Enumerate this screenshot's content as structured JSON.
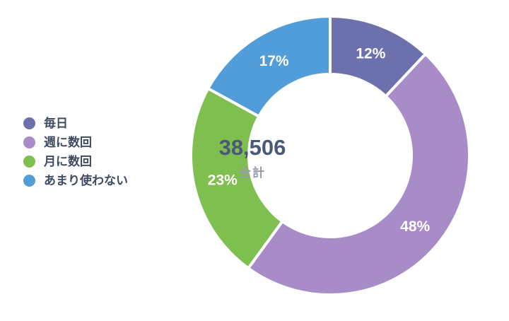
{
  "chart_data": {
    "type": "pie",
    "subtype": "donut",
    "title": "",
    "legend_position": "left",
    "start_angle_deg": 0,
    "direction": "clockwise",
    "center_total_value": "38,506",
    "center_total_label": "合計",
    "series": [
      {
        "label": "毎日",
        "value": 12,
        "percent_label": "12%",
        "color": "#6c70ad"
      },
      {
        "label": "週に数回",
        "value": 48,
        "percent_label": "48%",
        "color": "#a88cc7"
      },
      {
        "label": "月に数回",
        "value": 23,
        "percent_label": "23%",
        "color": "#7fbf4f"
      },
      {
        "label": "あまり使わない",
        "value": 17,
        "percent_label": "17%",
        "color": "#509dda"
      }
    ]
  },
  "colors": {
    "background": "#ffffff",
    "legend_text": "#3f4b63",
    "total_value_text": "#485979",
    "total_label_text": "#959dab",
    "slice_label_text": "#ffffff",
    "slice_gap": "#ffffff"
  }
}
